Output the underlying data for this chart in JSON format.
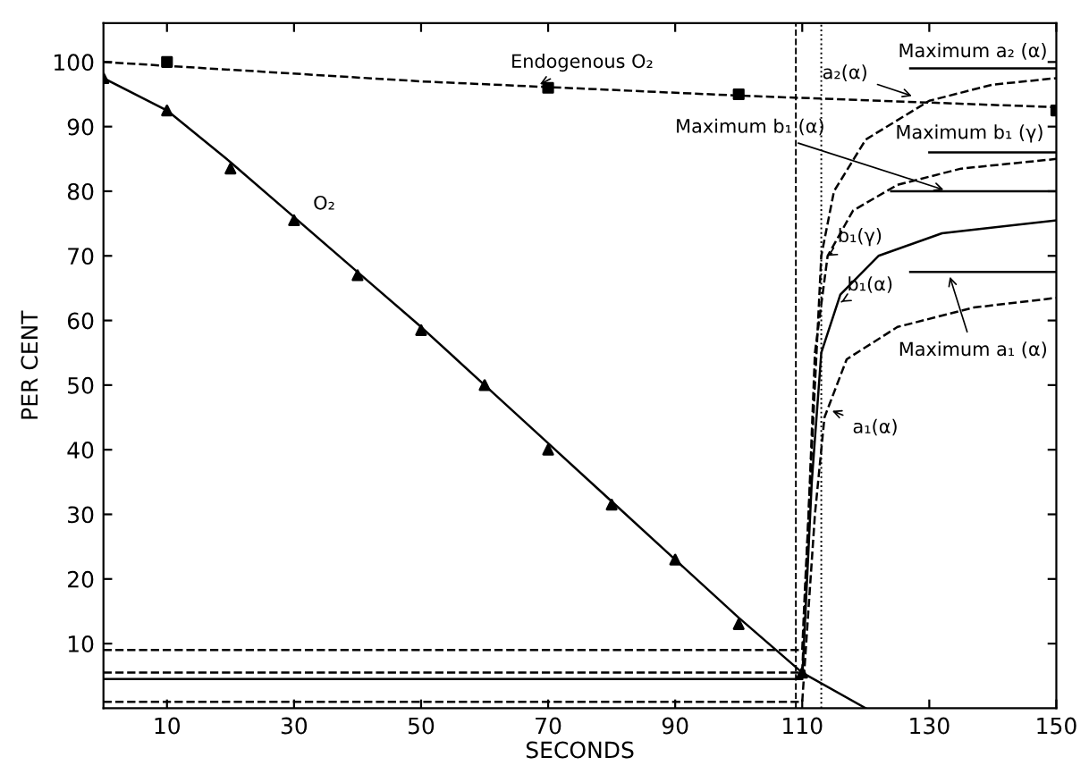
{
  "chart_data": {
    "type": "line",
    "xlabel": "SECONDS",
    "ylabel": "PER CENT",
    "xlim": [
      0,
      150
    ],
    "ylim": [
      0,
      106
    ],
    "xticks": [
      10,
      30,
      50,
      70,
      90,
      110,
      130,
      150
    ],
    "yticks": [
      10,
      20,
      30,
      40,
      50,
      60,
      70,
      80,
      90,
      100
    ],
    "grid": false,
    "series": [
      {
        "color": "#000000",
        "line_style": "solid",
        "marker": "none",
        "x": [
          0,
          10,
          20,
          30,
          40,
          50,
          60,
          70,
          80,
          90,
          100,
          110,
          120
        ],
        "values": [
          97.5,
          92.5,
          84.5,
          76,
          67.5,
          59,
          50,
          41,
          32,
          23,
          14,
          5.5,
          0
        ]
      },
      {
        "type": "scatter",
        "color": "#000000",
        "marker": "triangle",
        "x": [
          0,
          10,
          20,
          30,
          40,
          50,
          60,
          70,
          80,
          90,
          100,
          110
        ],
        "values": [
          97.5,
          92.5,
          83.5,
          75.5,
          67,
          58.5,
          50,
          40,
          31.5,
          23,
          13,
          5.5
        ]
      },
      {
        "color": "#000000",
        "line_style": "dashed",
        "marker": "none",
        "x": [
          0,
          50,
          100,
          150
        ],
        "values": [
          100,
          97,
          94.8,
          93
        ]
      },
      {
        "type": "scatter",
        "color": "#000000",
        "marker": "square",
        "x": [
          10,
          70,
          100,
          150
        ],
        "values": [
          100,
          96,
          95,
          92.5
        ]
      },
      {
        "color": "#000000",
        "line_style": "dashed",
        "marker": "none",
        "x": [
          0,
          110,
          110.5,
          112,
          113,
          115,
          120,
          130,
          140,
          150
        ],
        "values": [
          9,
          9,
          20,
          50,
          70,
          80,
          88,
          94,
          96.5,
          97.5
        ]
      },
      {
        "color": "#000000",
        "line_style": "dashed",
        "marker": "none",
        "x": [
          0,
          110,
          111,
          112,
          114,
          118,
          125,
          135,
          150
        ],
        "values": [
          5.5,
          5.5,
          30,
          55,
          70,
          77,
          81,
          83.5,
          85
        ]
      },
      {
        "color": "#000000",
        "line_style": "solid",
        "marker": "none",
        "x": [
          0,
          110,
          111.5,
          113,
          116,
          122,
          132,
          150
        ],
        "values": [
          4.5,
          4.5,
          35,
          55,
          64,
          70,
          73.5,
          75.5
        ]
      },
      {
        "color": "#000000",
        "line_style": "dashed",
        "marker": "none",
        "x": [
          0,
          110,
          112,
          113.5,
          117,
          125,
          137,
          150
        ],
        "values": [
          1,
          1,
          30,
          45,
          54,
          59,
          62,
          63.5
        ]
      },
      {
        "color": "#000000",
        "line_style": "solid",
        "marker": "none",
        "x": [
          127,
          150
        ],
        "values": [
          99,
          99
        ]
      },
      {
        "color": "#000000",
        "line_style": "solid",
        "marker": "none",
        "x": [
          130,
          150
        ],
        "values": [
          86,
          86
        ]
      },
      {
        "color": "#000000",
        "line_style": "solid",
        "marker": "none",
        "x": [
          124,
          150
        ],
        "values": [
          80,
          80
        ]
      },
      {
        "color": "#000000",
        "line_style": "solid",
        "marker": "none",
        "x": [
          127,
          150
        ],
        "values": [
          67.5,
          67.5
        ]
      }
    ],
    "ref_lines": [
      {
        "axis": "x",
        "value": 109,
        "color": "#000000",
        "line_style": "dashed"
      },
      {
        "axis": "x",
        "value": 113,
        "color": "#000000",
        "line_style": "dotted"
      }
    ],
    "annotations": [
      {
        "text": "Endogenous O₂",
        "x": 68,
        "y": 96.2
      },
      {
        "text": "O₂",
        "x": 33,
        "y": 73.5
      },
      {
        "text": "Maximum a₂ (α)",
        "x": 140,
        "y": 99
      },
      {
        "text": "a₂(α)",
        "x": 128,
        "y": 94.5
      },
      {
        "text": "Maximum b₁ (γ)",
        "x": 141,
        "y": 86
      },
      {
        "text": "Maximum b₁ (α)",
        "x": 133,
        "y": 80
      },
      {
        "text": "b₁(γ)",
        "x": 114,
        "y": 70
      },
      {
        "text": "b₁(α)",
        "x": 115.5,
        "y": 62.5
      },
      {
        "text": "Maximum a₁ (α)",
        "x": 133,
        "y": 67.5
      },
      {
        "text": "a₁(α)",
        "x": 114,
        "y": 46.3
      }
    ]
  }
}
